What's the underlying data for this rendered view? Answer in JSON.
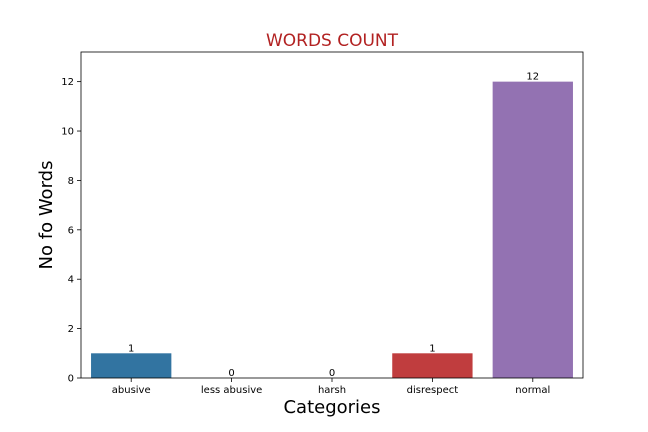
{
  "chart_data": {
    "type": "bar",
    "title": "WORDS COUNT",
    "title_color": "#b22222",
    "xlabel": "Categories",
    "ylabel": "No fo Words",
    "categories": [
      "abusive",
      "less abusive",
      "harsh",
      "disrespect",
      "normal"
    ],
    "values": [
      1,
      0,
      0,
      1,
      12
    ],
    "data_labels": [
      "1",
      "0",
      "0",
      "1",
      "12"
    ],
    "colors": [
      "#3274a1",
      "#e1812c",
      "#3a923a",
      "#c03d3e",
      "#9372b2"
    ],
    "ylim": [
      0,
      13.2
    ],
    "yticks": [
      0,
      2,
      4,
      6,
      8,
      10,
      12
    ],
    "grid": false,
    "legend": "none"
  }
}
